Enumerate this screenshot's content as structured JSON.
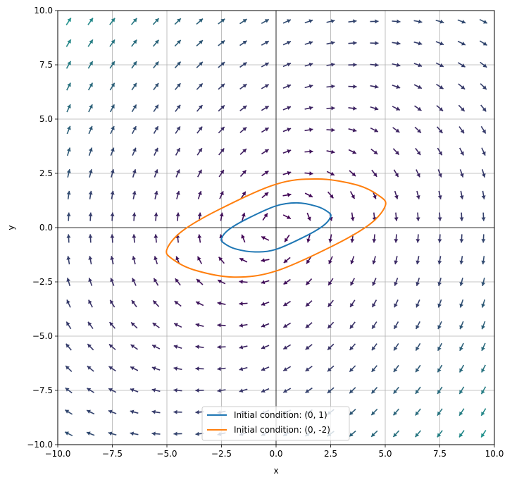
{
  "chart_data": {
    "type": "line",
    "title": "",
    "xlabel": "x",
    "ylabel": "y",
    "xlim": [
      -10,
      10
    ],
    "ylim": [
      -10,
      10
    ],
    "grid": true,
    "legend_position": "lower center",
    "x_ticks": [
      -10,
      -7.5,
      -5,
      -2.5,
      0,
      2.5,
      5,
      7.5,
      10
    ],
    "y_ticks": [
      -10,
      -7.5,
      -5,
      -2.5,
      0,
      2.5,
      5,
      7.5,
      10
    ],
    "x_tick_labels": [
      "−10.0",
      "−7.5",
      "−5.0",
      "−2.5",
      "0.0",
      "2.5",
      "5.0",
      "7.5",
      "10.0"
    ],
    "y_tick_labels": [
      "−10.0",
      "−7.5",
      "−5.0",
      "−2.5",
      "0.0",
      "2.5",
      "5.0",
      "7.5",
      "10.0"
    ],
    "vector_field": {
      "description": "direction field (quiver) on a 20x20 grid",
      "grid_x": [
        -9.5,
        -8.5,
        -7.5,
        -6.5,
        -5.5,
        -4.5,
        -3.5,
        -2.5,
        -1.5,
        -0.5,
        0.5,
        1.5,
        2.5,
        3.5,
        4.5,
        5.5,
        6.5,
        7.5,
        8.5,
        9.5
      ],
      "grid_y": [
        -9.5,
        -8.5,
        -7.5,
        -6.5,
        -5.5,
        -4.5,
        -3.5,
        -2.5,
        -1.5,
        -0.5,
        0.5,
        1.5,
        2.5,
        3.5,
        4.5,
        5.5,
        6.5,
        7.5,
        8.5,
        9.5
      ],
      "system": "dx/dt = y, dy/dt = -x + y/2",
      "color_low": "#440154",
      "color_high": "#21918c"
    },
    "series": [
      {
        "name": "Initial condition: (0, 1)",
        "color": "#1f77b4",
        "x": [
          0.0,
          0.96,
          1.86,
          2.38,
          2.5,
          2.15,
          1.3,
          0.0,
          -0.96,
          -1.86,
          -2.38,
          -2.5,
          -2.15,
          -1.3,
          0.0
        ],
        "y": [
          1.0,
          1.14,
          0.98,
          0.72,
          0.5,
          0.08,
          -0.42,
          -1.0,
          -1.12,
          -0.98,
          -0.72,
          -0.5,
          -0.08,
          0.42,
          1.0
        ]
      },
      {
        "name": "Initial condition: (0, -2)",
        "color": "#ff7f0e",
        "x": [
          0.0,
          -1.92,
          -3.72,
          -4.76,
          -5.0,
          -4.3,
          -2.6,
          0.0,
          1.92,
          3.72,
          4.76,
          5.0,
          4.3,
          2.6,
          0.0
        ],
        "y": [
          -2.0,
          -2.28,
          -1.96,
          -1.44,
          -1.0,
          -0.16,
          0.84,
          2.0,
          2.24,
          1.96,
          1.44,
          1.0,
          0.16,
          -0.84,
          -2.0
        ]
      }
    ]
  }
}
